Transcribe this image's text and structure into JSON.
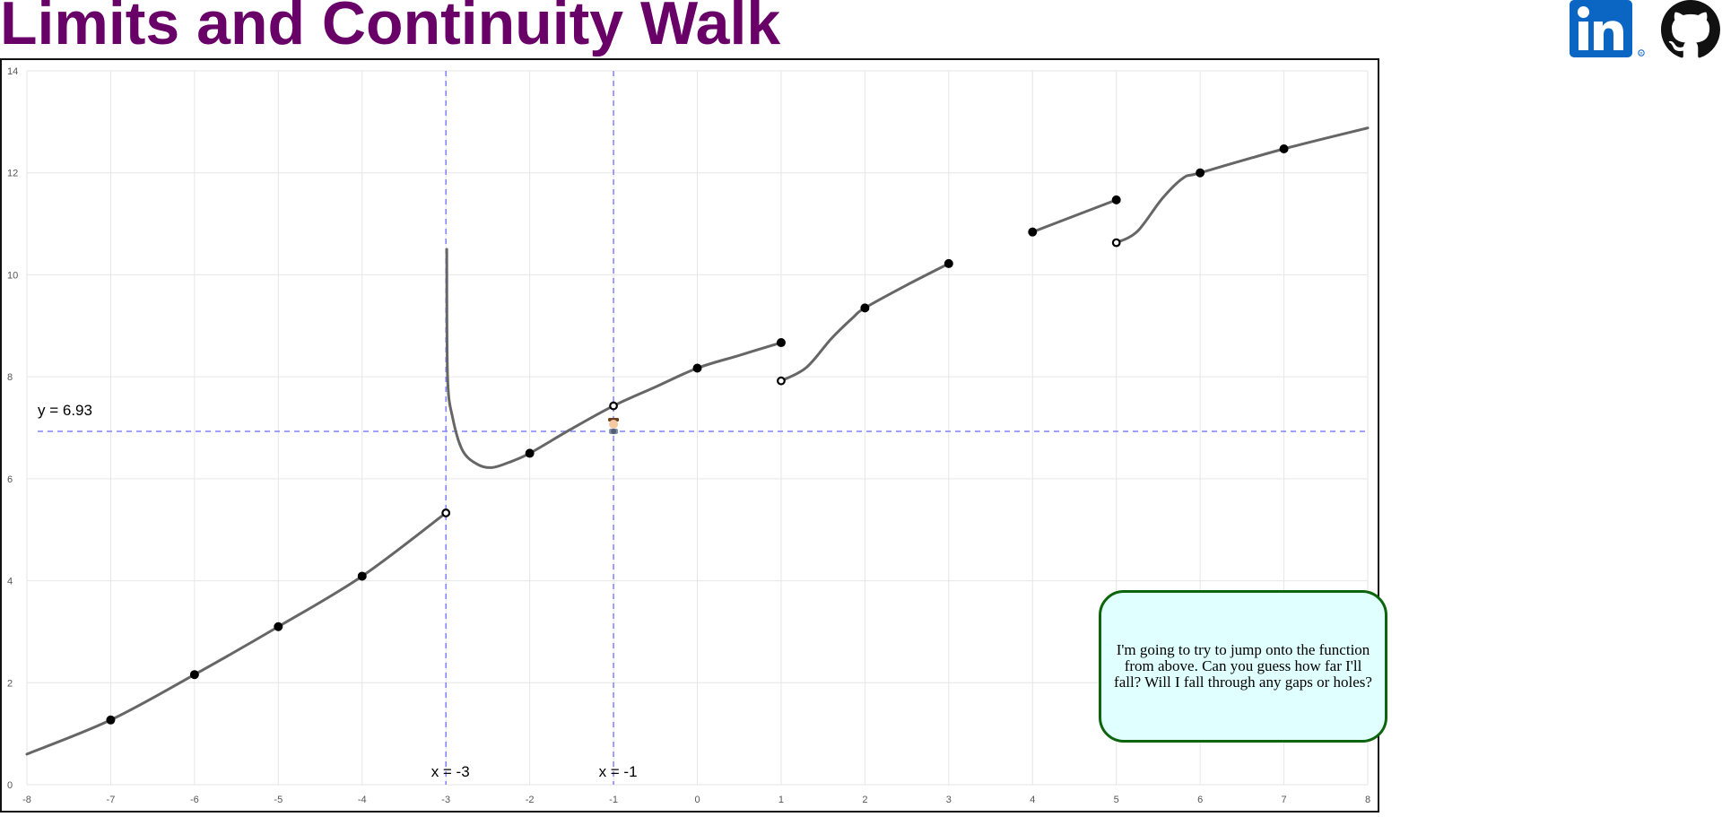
{
  "header": {
    "title": "Limits and Continuity Walk",
    "title_color": "#680068"
  },
  "social": {
    "linkedin_icon": "linkedin-icon",
    "github_icon": "github-icon",
    "linkedin_color": "#0a66c2"
  },
  "chart_data": {
    "type": "line",
    "xlim": [
      -8,
      8
    ],
    "ylim": [
      0,
      14
    ],
    "x_ticks": [
      "-8",
      "-7",
      "-6",
      "-5",
      "-4",
      "-3",
      "-2",
      "-1",
      "0",
      "1",
      "2",
      "3",
      "4",
      "5",
      "6",
      "7",
      "8"
    ],
    "y_ticks": [
      "0",
      "2",
      "4",
      "6",
      "8",
      "10",
      "12",
      "14"
    ],
    "grid": true,
    "curve_color": "#666666",
    "guide_color": "#8080ff",
    "segments": [
      {
        "points": [
          [
            -8,
            0.6
          ],
          [
            -7,
            1.27
          ],
          [
            -6,
            2.16
          ],
          [
            -5,
            3.1
          ],
          [
            -4,
            4.09
          ],
          [
            -3,
            5.33
          ]
        ]
      },
      {
        "points": [
          [
            -2.99,
            10.5
          ],
          [
            -2.98,
            8.0
          ],
          [
            -2.92,
            7.2
          ],
          [
            -2.8,
            6.55
          ],
          [
            -2.62,
            6.28
          ],
          [
            -2.45,
            6.22
          ],
          [
            -2.25,
            6.32
          ],
          [
            -2,
            6.5
          ],
          [
            -1.5,
            6.98
          ],
          [
            -1,
            7.43
          ],
          [
            -0.5,
            7.8
          ],
          [
            0,
            8.17
          ],
          [
            0.5,
            8.42
          ],
          [
            1,
            8.67
          ]
        ]
      },
      {
        "points": [
          [
            1,
            7.92
          ],
          [
            1.3,
            8.18
          ],
          [
            1.6,
            8.75
          ],
          [
            1.85,
            9.15
          ],
          [
            2,
            9.35
          ],
          [
            2.5,
            9.8
          ],
          [
            3,
            10.22
          ]
        ]
      },
      {
        "points": [
          [
            4,
            10.84
          ],
          [
            5,
            11.47
          ]
        ]
      },
      {
        "points": [
          [
            5,
            10.63
          ],
          [
            5.25,
            10.85
          ],
          [
            5.55,
            11.5
          ],
          [
            5.8,
            11.9
          ],
          [
            6,
            12.0
          ],
          [
            7,
            12.47
          ],
          [
            8,
            12.88
          ]
        ]
      }
    ],
    "closed_points": [
      [
        -7,
        1.27
      ],
      [
        -6,
        2.16
      ],
      [
        -5,
        3.1
      ],
      [
        -4,
        4.09
      ],
      [
        -2,
        6.5
      ],
      [
        0,
        8.17
      ],
      [
        1,
        8.67
      ],
      [
        2,
        9.35
      ],
      [
        3,
        10.22
      ],
      [
        4,
        10.84
      ],
      [
        5,
        11.47
      ],
      [
        6,
        12.0
      ],
      [
        7,
        12.47
      ]
    ],
    "open_points": [
      [
        -3,
        5.33
      ],
      [
        -1,
        7.43
      ],
      [
        1,
        7.92
      ],
      [
        5,
        10.63
      ]
    ],
    "vertical_guides": [
      {
        "x": -3,
        "label": "x = -3"
      },
      {
        "x": -1,
        "label": "x = -1"
      }
    ],
    "horizontal_guides": [
      {
        "y": 6.93,
        "label": "y = 6.93"
      }
    ],
    "walker": {
      "x": -1,
      "y": 6.93,
      "icon": "walker-character-icon"
    }
  },
  "speech_bubble": {
    "text": "I'm going to try to jump onto the function from above. Can you guess how far I'll fall? Will I fall through any gaps or holes?",
    "background": "#e0ffff",
    "border": "#0c640c"
  }
}
